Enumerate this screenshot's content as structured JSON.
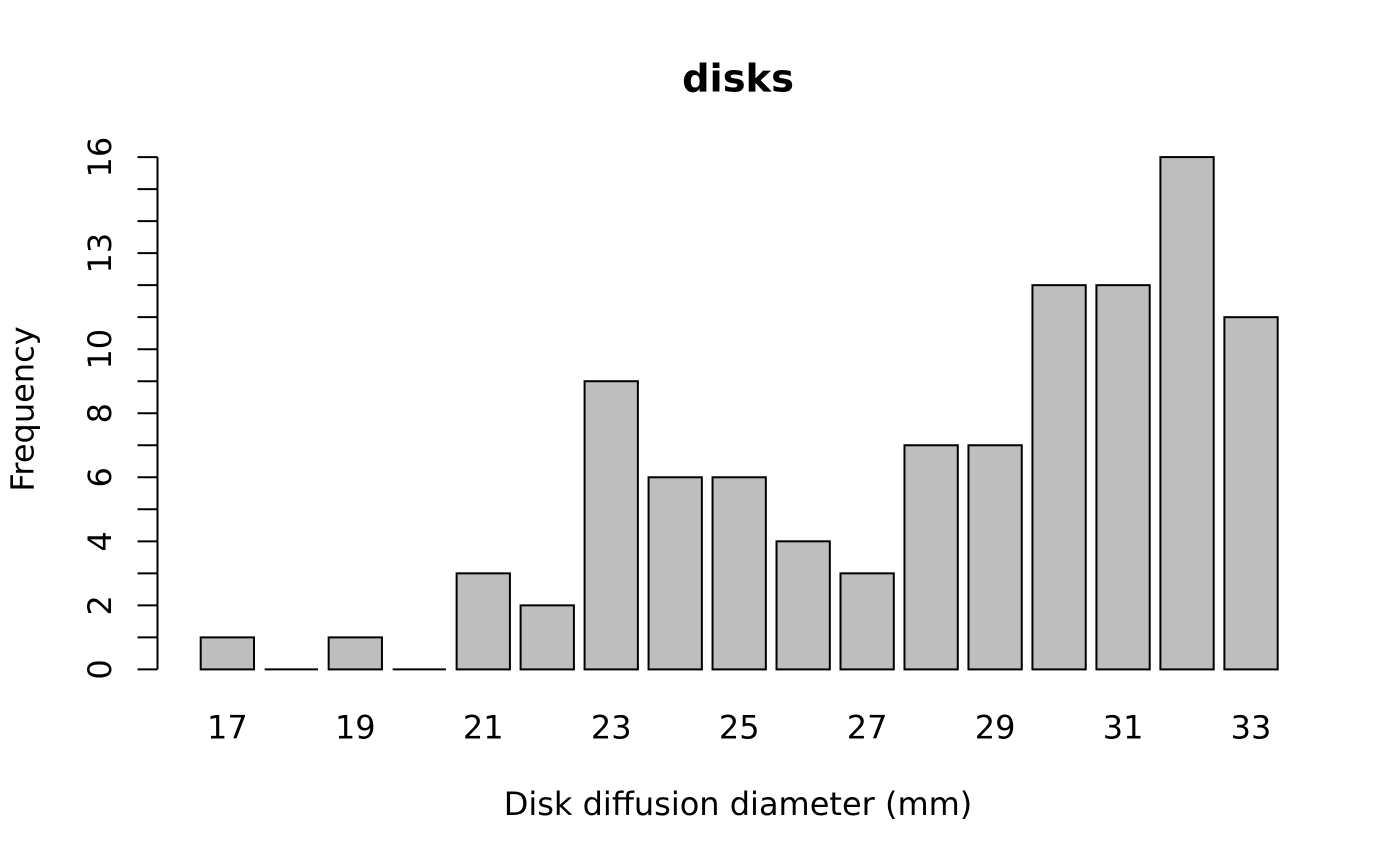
{
  "figure": {
    "background": "#ffffff",
    "text_color": "#000000"
  },
  "chart_data": {
    "type": "bar",
    "subtype": "histogram",
    "title": "disks",
    "xlabel": "Disk diffusion diameter (mm)",
    "ylabel": "Frequency",
    "categories": [
      17,
      18,
      19,
      20,
      21,
      22,
      23,
      24,
      25,
      26,
      27,
      28,
      29,
      30,
      31,
      32,
      33
    ],
    "values": [
      1,
      0,
      1,
      0,
      3,
      2,
      9,
      6,
      6,
      4,
      3,
      7,
      7,
      12,
      12,
      16,
      11
    ],
    "x_tick_labels": [
      "17",
      "19",
      "21",
      "23",
      "25",
      "27",
      "29",
      "31",
      "33"
    ],
    "x_ticks_at": [
      17,
      19,
      21,
      23,
      25,
      27,
      29,
      31,
      33
    ],
    "ylim": [
      0,
      16
    ],
    "y_tick_step": 1,
    "y_ticks_at": [
      0,
      1,
      2,
      3,
      4,
      5,
      6,
      7,
      8,
      9,
      10,
      11,
      12,
      13,
      14,
      15,
      16
    ],
    "y_tick_labels_at": [
      0,
      2,
      4,
      6,
      8,
      10,
      13,
      16
    ],
    "grid": false,
    "legend": null,
    "bar_fill": "#bebebe",
    "bar_stroke": "#000000",
    "axis_color": "#000000"
  }
}
